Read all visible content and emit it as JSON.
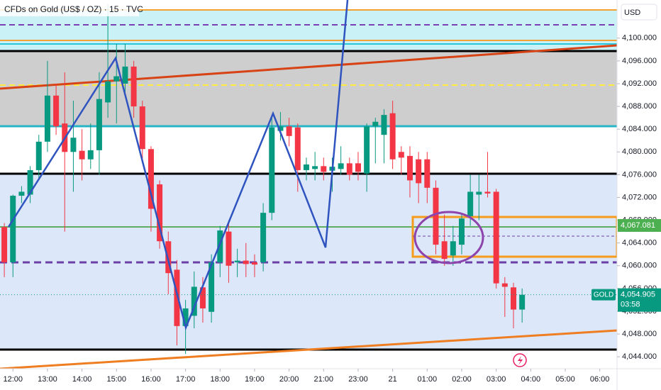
{
  "chart_data": {
    "type": "candlestick",
    "title": "CFDs on Gold (US$ / OZ) · 15 · TVC",
    "currency": "USD",
    "up_color": "#089981",
    "down_color": "#f23645",
    "open": [
      4066.8,
      4060.6,
      4072.3,
      4072.5,
      4076.8,
      4081.8,
      4089.9,
      4085,
      4080,
      4080.2,
      4078.7,
      4080.3,
      4088.7,
      4092.4,
      4092,
      4095,
      4088,
      4080.5,
      4074.3,
      4064.3,
      4059.3,
      4049.4,
      4051.2,
      4056.2,
      4051.9,
      4060.6,
      4066,
      4060.6,
      4060.9,
      4060.6,
      4060.6,
      4069.3,
      4083.7,
      4084.5,
      4084.3,
      4076.8,
      4077,
      4077.5,
      4076.7,
      4077,
      4078,
      4078,
      4076.2,
      4084.5,
      4083,
      4086.8,
      4080,
      4079.3,
      4078.7,
      4078.7,
      4073.7,
      4064.3,
      4061.8,
      4063.7,
      4068.7,
      4072.5,
      4073,
      4073,
      4056.9,
      4056.2,
      4052.3
    ],
    "high": [
      4067.5,
      4072.5,
      4074,
      4077.5,
      4083,
      4096,
      4092,
      4094,
      4089,
      4084,
      4085,
      4094,
      4106,
      4099,
      4099,
      4096,
      4089,
      4081,
      4075,
      4066,
      4061,
      4054,
      4059,
      4058,
      4062,
      4067,
      4068,
      4063,
      4064,
      4062,
      4071,
      4086,
      4087,
      4086,
      4085,
      4079,
      4080,
      4079,
      4079,
      4081,
      4079,
      4080,
      4085,
      4086,
      4087.5,
      4089,
      4081,
      4081,
      4080,
      4080,
      4075,
      4069,
      4067,
      4069,
      4076,
      4076,
      4080,
      4073.5,
      4058,
      4057,
      4056
    ],
    "low": [
      4058,
      4058,
      4071,
      4071,
      4075,
      4080,
      4083,
      4066,
      4073,
      4075,
      4077,
      4076,
      4086,
      4085,
      4090,
      4086,
      4078,
      4066,
      4063,
      4055,
      4046,
      4044.5,
      4049,
      4050,
      4050,
      4058,
      4057,
      4058,
      4058,
      4058,
      4059,
      4068,
      4082,
      4081,
      4073,
      4075,
      4075,
      4075,
      4073,
      4076,
      4075,
      4075,
      4073,
      4078,
      4078,
      4077,
      4076,
      4072,
      4071,
      4071,
      4062,
      4060,
      4060,
      4062,
      4067,
      4068,
      4072,
      4056,
      4051,
      4049,
      4050
    ],
    "close": [
      4060.6,
      4072.3,
      4073,
      4076.8,
      4081.8,
      4089.9,
      4084.5,
      4080,
      4082.5,
      4078.7,
      4080.3,
      4089.3,
      4092.4,
      4093.3,
      4095,
      4088,
      4080.5,
      4070,
      4064.3,
      4058.7,
      4049.4,
      4052.5,
      4056.3,
      4052.5,
      4060.6,
      4066.2,
      4060,
      4060.9,
      4060.3,
      4060.2,
      4069.3,
      4084.3,
      4084.5,
      4082.8,
      4076.8,
      4077.8,
      4077.5,
      4076.5,
      4077.4,
      4078,
      4076,
      4076.5,
      4084.5,
      4085.3,
      4086.5,
      4078.7,
      4079,
      4075,
      4074.5,
      4073.7,
      4063.7,
      4061.2,
      4064.3,
      4068.3,
      4073,
      4073,
      4072.7,
      4056.9,
      4056.3,
      4052.3,
      4054.9
    ],
    "xlim": [
      -0.5,
      71
    ],
    "xticks": [
      {
        "value": 1,
        "label": "12:00"
      },
      {
        "value": 5,
        "label": "13:00"
      },
      {
        "value": 9,
        "label": "14:00"
      },
      {
        "value": 13,
        "label": "15:00"
      },
      {
        "value": 17,
        "label": "16:00"
      },
      {
        "value": 21,
        "label": "17:00"
      },
      {
        "value": 25,
        "label": "18:00"
      },
      {
        "value": 29,
        "label": "19:00"
      },
      {
        "value": 33,
        "label": "20:00"
      },
      {
        "value": 37,
        "label": "21:00"
      },
      {
        "value": 41,
        "label": "23:00"
      },
      {
        "value": 45,
        "label": "21"
      },
      {
        "value": 49,
        "label": "01:00"
      },
      {
        "value": 53,
        "label": "02:00"
      },
      {
        "value": 57,
        "label": "03:00"
      },
      {
        "value": 61,
        "label": "04:00"
      },
      {
        "value": 65,
        "label": "05:00"
      },
      {
        "value": 69,
        "label": "06:00"
      }
    ],
    "ylim": [
      4041.9,
      4106.7
    ],
    "yticks": [
      {
        "value": 4044,
        "label": "4,044.000"
      },
      {
        "value": 4048,
        "label": "4,048.000"
      },
      {
        "value": 4052,
        "label": "4,052.000"
      },
      {
        "value": 4056,
        "label": "4,056.000"
      },
      {
        "value": 4060,
        "label": "4,060.000"
      },
      {
        "value": 4064,
        "label": "4,064.000"
      },
      {
        "value": 4068,
        "label": "4,068.000"
      },
      {
        "value": 4072,
        "label": "4,072.000"
      },
      {
        "value": 4076,
        "label": "4,076.000"
      },
      {
        "value": 4080,
        "label": "4,080.000"
      },
      {
        "value": 4084,
        "label": "4,084.000"
      },
      {
        "value": 4088,
        "label": "4,088.000"
      },
      {
        "value": 4092,
        "label": "4,092.000"
      },
      {
        "value": 4096,
        "label": "4,096.000"
      },
      {
        "value": 4100,
        "label": "4,100.000"
      }
    ],
    "level_tag": {
      "value": 4067.081,
      "label": "4,067.081",
      "color": "#4caf50"
    },
    "last_price": {
      "value": 4054.905,
      "label": "4,054.905",
      "color": "#2962ff"
    },
    "symbol_tag": "GOLD",
    "countdown": "03:58"
  }
}
